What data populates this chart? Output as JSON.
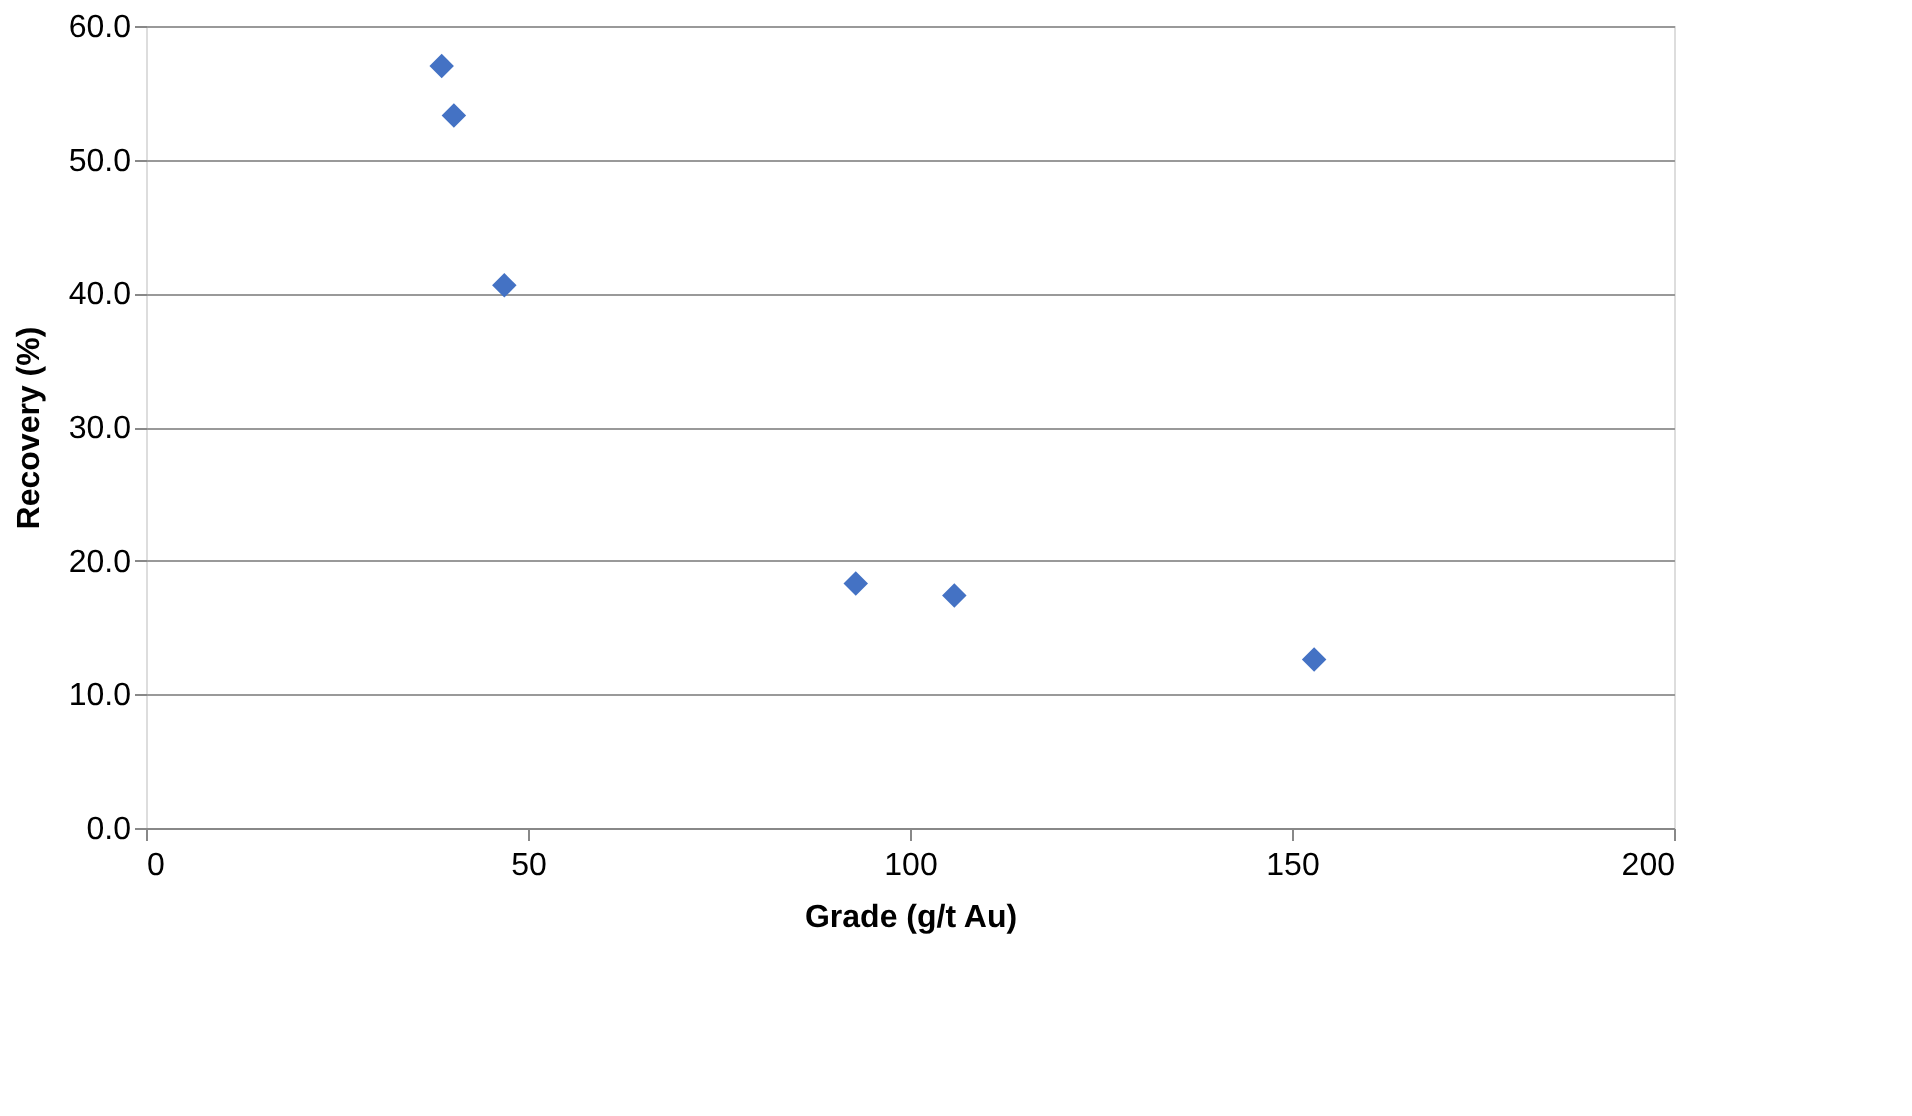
{
  "chart_data": {
    "type": "scatter",
    "xlabel": "Grade (g/t Au)",
    "ylabel": "Recovery (%)",
    "x": [
      38.7,
      40.3,
      46.9,
      92.9,
      105.8,
      152.9
    ],
    "series": [
      {
        "color": "#4472c4",
        "values": [
          57.0,
          53.3,
          40.6,
          18.3,
          17.4,
          12.6
        ]
      }
    ],
    "xlim": [
      0,
      200
    ],
    "xticks": [
      0,
      50,
      100,
      150,
      200
    ],
    "ylim": [
      0,
      60
    ],
    "yticks": [
      {
        "value": 0,
        "label": "0.0"
      },
      {
        "value": 10,
        "label": "10.0"
      },
      {
        "value": 20,
        "label": "20.0"
      },
      {
        "value": 30,
        "label": "30.0"
      },
      {
        "value": 40,
        "label": "40.0"
      },
      {
        "value": 50,
        "label": "50.0"
      },
      {
        "value": 60,
        "label": "60.0"
      }
    ],
    "grid": "y",
    "marker": "diamond",
    "legend": false
  }
}
